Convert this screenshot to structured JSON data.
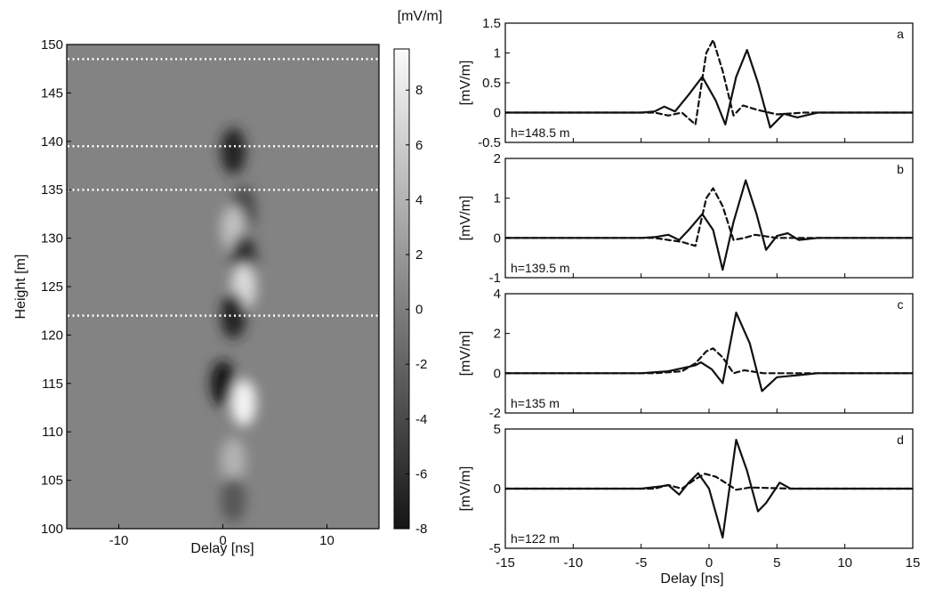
{
  "chart_data": [
    {
      "type": "heatmap",
      "xlabel": "Delay [ns]",
      "ylabel": "Height [m]",
      "xlim": [
        -15,
        15
      ],
      "ylim": [
        100,
        150
      ],
      "x_ticks": [
        -10,
        0,
        10
      ],
      "y_ticks": [
        100,
        105,
        110,
        115,
        120,
        125,
        130,
        135,
        140,
        145,
        150
      ],
      "colorbar": {
        "label": "[mV/m]",
        "range": [
          -8,
          9.5
        ],
        "ticks": [
          -8,
          -6,
          -4,
          -2,
          0,
          2,
          4,
          6,
          8
        ],
        "colormap": "gray"
      },
      "marked_heights": [
        148.5,
        139.5,
        135,
        122
      ],
      "marker_style": "white dotted horizontal lines",
      "features": [
        {
          "delay": 1,
          "height": 139,
          "value": -7
        },
        {
          "delay": 2,
          "height": 133,
          "value": -4
        },
        {
          "delay": 1,
          "height": 131,
          "value": 5
        },
        {
          "delay": 2,
          "height": 128,
          "value": -6
        },
        {
          "delay": 2,
          "height": 125,
          "value": 7
        },
        {
          "delay": 1,
          "height": 122,
          "value": -7
        },
        {
          "delay": 0,
          "height": 115,
          "value": -8
        },
        {
          "delay": 2,
          "height": 113,
          "value": 9
        },
        {
          "delay": 1,
          "height": 107,
          "value": 4
        },
        {
          "delay": 1,
          "height": 103,
          "value": -3
        }
      ]
    },
    {
      "type": "line",
      "panel": "a",
      "annotation": "h=148.5 m",
      "ylabel": "[mV/m]",
      "ylim": [
        -0.5,
        1.5
      ],
      "y_ticks": [
        "1.5",
        "1",
        "0.5",
        "0",
        "-0.5"
      ],
      "xlim": [
        -15,
        15
      ],
      "series": [
        {
          "style": "solid",
          "x": [
            -15,
            -5,
            -4,
            -3.3,
            -2.5,
            -1.5,
            -0.5,
            0.5,
            1.2,
            2,
            2.8,
            3.6,
            4.5,
            5.5,
            6.5,
            8,
            15
          ],
          "y": [
            0,
            0,
            0.02,
            0.1,
            0.02,
            0.3,
            0.6,
            0.2,
            -0.2,
            0.6,
            1.05,
            0.5,
            -0.25,
            -0.02,
            -0.08,
            0,
            0
          ]
        },
        {
          "style": "dashed",
          "x": [
            -15,
            -4,
            -3,
            -2,
            -1,
            -0.2,
            0.3,
            1,
            1.8,
            2.5,
            3.5,
            5,
            7,
            15
          ],
          "y": [
            0,
            0,
            -0.05,
            0,
            -0.2,
            1.0,
            1.22,
            0.7,
            -0.05,
            0.12,
            0.05,
            -0.03,
            0,
            0
          ]
        }
      ]
    },
    {
      "type": "line",
      "panel": "b",
      "annotation": "h=139.5 m",
      "ylabel": "[mV/m]",
      "ylim": [
        -1,
        2
      ],
      "y_ticks": [
        "2",
        "1",
        "0",
        "-1"
      ],
      "xlim": [
        -15,
        15
      ],
      "series": [
        {
          "style": "solid",
          "x": [
            -15,
            -5,
            -4,
            -3,
            -2.2,
            -1.5,
            -0.5,
            0.3,
            1,
            1.8,
            2.7,
            3.5,
            4.2,
            5,
            5.8,
            6.6,
            8,
            15
          ],
          "y": [
            0,
            0,
            0.02,
            0.08,
            -0.05,
            0.2,
            0.6,
            0.2,
            -0.8,
            0.4,
            1.45,
            0.6,
            -0.3,
            0.05,
            0.12,
            -0.05,
            0,
            0
          ]
        },
        {
          "style": "dashed",
          "x": [
            -15,
            -4,
            -3,
            -2,
            -1,
            -0.2,
            0.3,
            1,
            1.8,
            2.6,
            3.4,
            5,
            7,
            15
          ],
          "y": [
            0,
            0,
            -0.05,
            -0.1,
            -0.2,
            1.0,
            1.25,
            0.8,
            -0.05,
            0.0,
            0.08,
            0,
            0,
            0
          ]
        }
      ]
    },
    {
      "type": "line",
      "panel": "c",
      "annotation": "h=135 m",
      "ylabel": "[mV/m]",
      "ylim": [
        -2,
        4
      ],
      "y_ticks": [
        "4",
        "2",
        "0",
        "-2"
      ],
      "xlim": [
        -15,
        15
      ],
      "series": [
        {
          "style": "solid",
          "x": [
            -15,
            -5,
            -3,
            -1,
            -0.6,
            0.2,
            1,
            2,
            3,
            3.9,
            5,
            6.5,
            8,
            15
          ],
          "y": [
            0,
            0,
            0.1,
            0.4,
            0.55,
            0.2,
            -0.5,
            3.05,
            1.5,
            -0.9,
            -0.2,
            -0.1,
            0,
            0
          ]
        },
        {
          "style": "dashed",
          "x": [
            -15,
            -4,
            -2,
            -1,
            -0.2,
            0.3,
            1,
            1.8,
            2.6,
            4,
            6,
            15
          ],
          "y": [
            0,
            0,
            0.1,
            0.5,
            1.1,
            1.25,
            0.8,
            0.0,
            0.15,
            0,
            0,
            0
          ]
        }
      ]
    },
    {
      "type": "line",
      "panel": "d",
      "annotation": "h=122 m",
      "ylabel": "[mV/m]",
      "ylim": [
        -5,
        5
      ],
      "y_ticks": [
        "5",
        "0",
        "-5"
      ],
      "xlim": [
        -15,
        15
      ],
      "series": [
        {
          "style": "solid",
          "x": [
            -15,
            -5,
            -3.5,
            -3,
            -2.2,
            -1.5,
            -0.8,
            0,
            1,
            2,
            2.8,
            3.6,
            4.2,
            5.2,
            6,
            7,
            15
          ],
          "y": [
            0,
            0,
            0.2,
            0.3,
            -0.5,
            0.5,
            1.3,
            0,
            -4.1,
            4.1,
            1.5,
            -1.9,
            -1.2,
            0.5,
            0,
            0,
            0
          ]
        },
        {
          "style": "dashed",
          "x": [
            -15,
            -4,
            -3,
            -2,
            -1,
            -0.3,
            0.5,
            1.2,
            2,
            3,
            4.5,
            6,
            15
          ],
          "y": [
            0,
            0,
            0.3,
            0.0,
            0.8,
            1.25,
            1.0,
            0.5,
            -0.1,
            0.1,
            0.05,
            0,
            0
          ]
        }
      ]
    },
    {
      "type": "axis",
      "note": "shared x-axis of the line panels",
      "xlabel": "Delay [ns]",
      "x_ticks": [
        -15,
        -10,
        -5,
        0,
        5,
        10,
        15
      ]
    }
  ]
}
